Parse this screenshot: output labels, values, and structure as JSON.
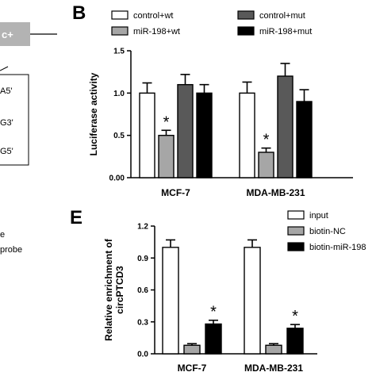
{
  "left_fragments": {
    "box_label": "c+",
    "sequence_ends": [
      "A5'",
      "G3'",
      "G5'"
    ],
    "legend_lines": [
      "e",
      "probe"
    ]
  },
  "chart_data": [
    {
      "type": "bar",
      "panel": "B",
      "ylabel": "Luciferase activity",
      "xlabel": "",
      "ylim": [
        0,
        1.5
      ],
      "yticks": [
        "0.00",
        "0.5",
        "1.0",
        "1.5"
      ],
      "categories": [
        "MCF-7",
        "MDA-MB-231"
      ],
      "grid": false,
      "legend_position": "top",
      "series": [
        {
          "name": "control+wt",
          "color": "#ffffff",
          "values": [
            1.0,
            1.0
          ],
          "errors": [
            0.12,
            0.13
          ]
        },
        {
          "name": "miR-198+wt",
          "color": "#a6a6a6",
          "values": [
            0.5,
            0.3
          ],
          "errors": [
            0.06,
            0.05
          ]
        },
        {
          "name": "control+mut",
          "color": "#595959",
          "values": [
            1.1,
            1.2
          ],
          "errors": [
            0.12,
            0.15
          ]
        },
        {
          "name": "miR-198+mut",
          "color": "#000000",
          "values": [
            1.0,
            0.9
          ],
          "errors": [
            0.1,
            0.14
          ]
        }
      ],
      "annotations": [
        {
          "text": "*",
          "category": 0,
          "series": 1
        },
        {
          "text": "*",
          "category": 1,
          "series": 1
        }
      ]
    },
    {
      "type": "bar",
      "panel": "E",
      "ylabel": "Relative enrichment of circPTCD3",
      "xlabel": "",
      "ylim": [
        0,
        1.2
      ],
      "yticks": [
        "0.0",
        "0.3",
        "0.6",
        "0.9",
        "1.2"
      ],
      "categories": [
        "MCF-7",
        "MDA-MB-231"
      ],
      "grid": false,
      "legend_position": "top-right",
      "series": [
        {
          "name": "input",
          "color": "#ffffff",
          "values": [
            1.0,
            1.0
          ],
          "errors": [
            0.07,
            0.07
          ]
        },
        {
          "name": "biotin-NC",
          "color": "#a6a6a6",
          "values": [
            0.08,
            0.08
          ],
          "errors": [
            0.015,
            0.015
          ]
        },
        {
          "name": "biotin-miR-198",
          "color": "#000000",
          "values": [
            0.28,
            0.24
          ],
          "errors": [
            0.035,
            0.035
          ]
        }
      ],
      "annotations": [
        {
          "text": "*",
          "category": 0,
          "series": 2
        },
        {
          "text": "*",
          "category": 1,
          "series": 2
        }
      ]
    }
  ]
}
